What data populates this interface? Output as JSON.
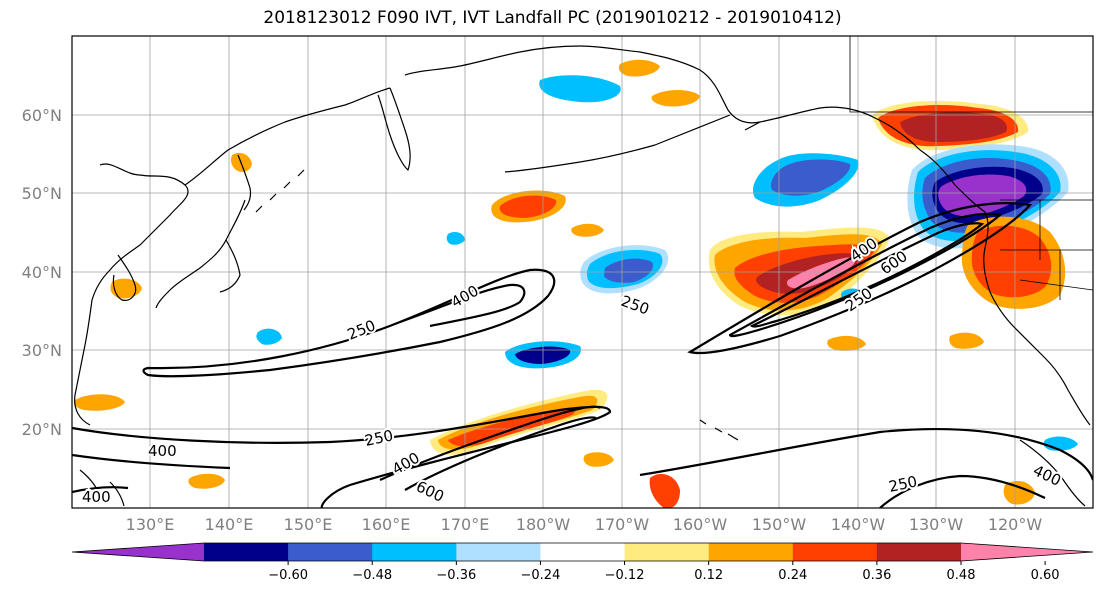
{
  "title": "2018123012 F090 IVT, IVT Landfall PC (2019010212 - 2019010412)",
  "latitude_labels": [
    "60°N",
    "50°N",
    "40°N",
    "30°N",
    "20°N"
  ],
  "longitude_labels": [
    "130°E",
    "140°E",
    "150°E",
    "160°E",
    "170°E",
    "180°W",
    "170°W",
    "160°W",
    "150°W",
    "140°W",
    "130°W",
    "120°W"
  ],
  "contour_levels": [
    "250",
    "400",
    "600"
  ],
  "colorbar": {
    "tick_labels": [
      "−0.60",
      "−0.48",
      "−0.36",
      "−0.24",
      "−0.12",
      "0.12",
      "0.24",
      "0.36",
      "0.48",
      "0.60"
    ],
    "colors": [
      "#9932cc",
      "#00008b",
      "#3a5ccc",
      "#00bfff",
      "#b0e0ff",
      "#ffffff",
      "#ffeb80",
      "#ffa500",
      "#ff4000",
      "#b22222",
      "#ff82ab"
    ]
  },
  "colors": {
    "coastline": "#000000",
    "grid": "#a0a0a0",
    "contour": "#000000"
  }
}
